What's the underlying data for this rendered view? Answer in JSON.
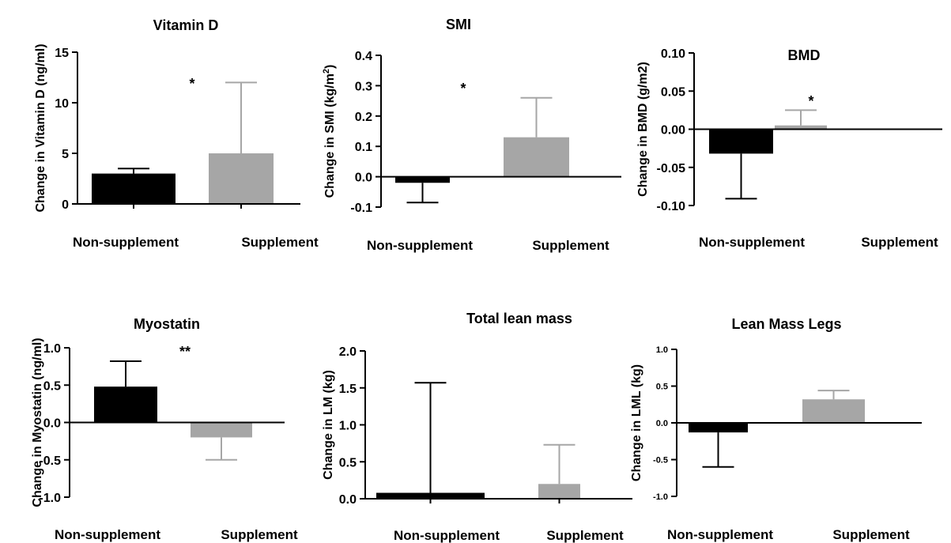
{
  "chart_data": [
    {
      "type": "bar",
      "title": "Vitamin D",
      "ylabel": "Change in Vitamin D (ng/ml)",
      "categories": [
        "Non-supplement",
        "Supplement"
      ],
      "values": [
        3.0,
        5.0
      ],
      "error_upper": [
        3.5,
        12.0
      ],
      "ylim": [
        0,
        15
      ],
      "yticks": [
        0,
        5,
        10,
        15
      ],
      "ytick_labels": [
        "0",
        "5",
        "10",
        "15"
      ],
      "significance": "*",
      "colors": [
        "#000000",
        "#a6a6a6"
      ]
    },
    {
      "type": "bar",
      "title": "SMI",
      "ylabel": "Change in SMI (kg/m",
      "ylabel_superscript": "2",
      "ylabel_suffix": ")",
      "categories": [
        "Non-supplement",
        "Supplement"
      ],
      "values": [
        -0.02,
        0.13
      ],
      "error_upper": [
        -0.085,
        0.26
      ],
      "ylim": [
        -0.1,
        0.4
      ],
      "yticks": [
        -0.1,
        0.0,
        0.1,
        0.2,
        0.3,
        0.4
      ],
      "ytick_labels": [
        "-0.1",
        "0.0",
        "0.1",
        "0.2",
        "0.3",
        "0.4"
      ],
      "significance": "*",
      "colors": [
        "#000000",
        "#a6a6a6"
      ]
    },
    {
      "type": "bar",
      "title": "BMD",
      "ylabel": "Change in BMD (g/m2)",
      "categories": [
        "Non-supplement",
        "Supplement"
      ],
      "values": [
        -0.032,
        0.005
      ],
      "error_upper": [
        -0.091,
        0.025
      ],
      "ylim": [
        -0.1,
        0.1
      ],
      "yticks": [
        -0.1,
        -0.05,
        0.0,
        0.05,
        0.1
      ],
      "ytick_labels": [
        "-0.10",
        "-0.05",
        "0.00",
        "0.05",
        "0.10"
      ],
      "significance": "*",
      "colors": [
        "#000000",
        "#a6a6a6"
      ]
    },
    {
      "type": "bar",
      "title": "Myostatin",
      "ylabel": "Change in Myostatin (ng/ml)",
      "categories": [
        "Non-supplement",
        "Supplement"
      ],
      "values": [
        0.48,
        -0.2
      ],
      "error_upper": [
        0.82,
        -0.5
      ],
      "ylim": [
        -1.0,
        1.0
      ],
      "yticks": [
        -1.0,
        -0.5,
        0.0,
        0.5,
        1.0
      ],
      "ytick_labels": [
        "-1.0",
        "-0.5",
        "0.0",
        "0.5",
        "1.0"
      ],
      "significance": "**",
      "colors": [
        "#000000",
        "#a6a6a6"
      ]
    },
    {
      "type": "bar",
      "title": "Total lean mass",
      "ylabel": "Change in LM (kg)",
      "categories": [
        "Non-supplement",
        "Supplement"
      ],
      "values": [
        0.08,
        0.2
      ],
      "error_upper": [
        1.57,
        0.73
      ],
      "ylim": [
        0,
        2.0
      ],
      "yticks": [
        0,
        0.5,
        1.0,
        1.5,
        2.0
      ],
      "ytick_labels": [
        "0.0",
        "0.5",
        "1.0",
        "1.5",
        "2.0"
      ],
      "significance": "",
      "colors": [
        "#000000",
        "#a6a6a6"
      ]
    },
    {
      "type": "bar",
      "title": "Lean Mass Legs",
      "ylabel": "Change in LML (kg)",
      "categories": [
        "Non-supplement",
        "Supplement"
      ],
      "values": [
        -0.13,
        0.32
      ],
      "error_upper": [
        -0.6,
        0.44
      ],
      "ylim": [
        -1.0,
        1.0
      ],
      "yticks": [
        -1.0,
        -0.5,
        0.0,
        0.5,
        1.0
      ],
      "ytick_labels": [
        "-1.0",
        "-0.5",
        "0.0",
        "0.5",
        "1.0"
      ],
      "significance": "",
      "colors": [
        "#000000",
        "#a6a6a6"
      ]
    }
  ]
}
